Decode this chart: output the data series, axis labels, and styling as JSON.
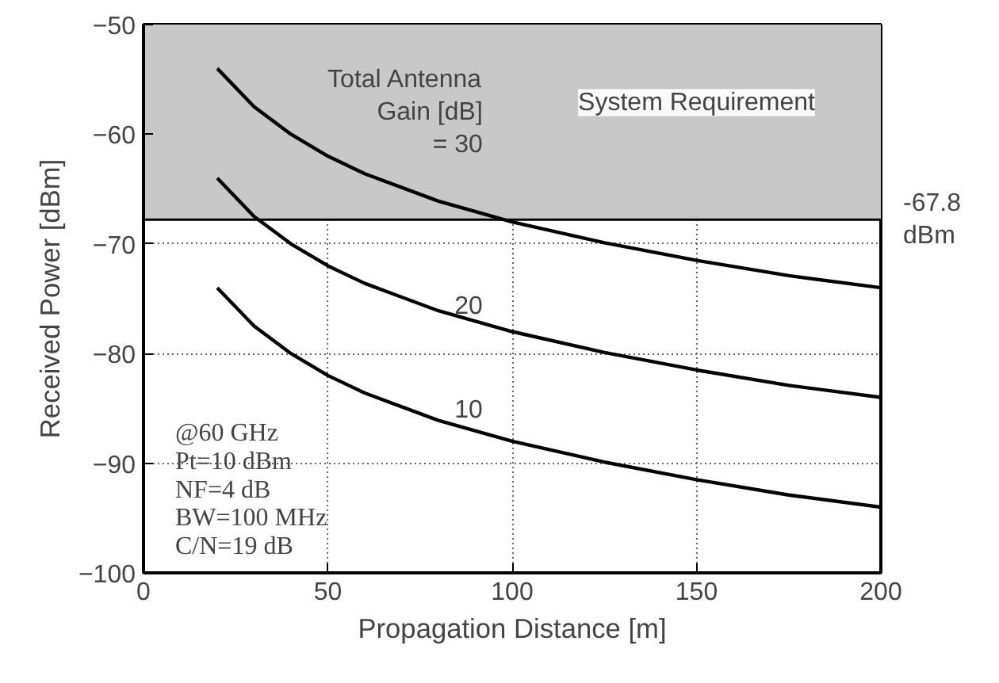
{
  "chart_data": {
    "type": "line",
    "xlabel": "Propagation Distance [m]",
    "ylabel": "Received Power [dBm]",
    "x": [
      20,
      30,
      40,
      50,
      60,
      80,
      100,
      125,
      150,
      175,
      200
    ],
    "series": [
      {
        "color": "#000000",
        "values": [
          -54.0,
          -57.5,
          -60.0,
          -62.0,
          -63.6,
          -66.1,
          -68.0,
          -69.9,
          -71.5,
          -72.9,
          -74.0
        ]
      },
      {
        "color": "#000000",
        "values": [
          -64.0,
          -67.5,
          -70.0,
          -72.0,
          -73.6,
          -76.1,
          -78.0,
          -79.9,
          -81.5,
          -82.9,
          -84.0
        ]
      },
      {
        "color": "#000000",
        "values": [
          -74.0,
          -77.5,
          -80.0,
          -82.0,
          -83.6,
          -86.1,
          -88.0,
          -89.9,
          -91.5,
          -92.9,
          -94.0
        ]
      }
    ],
    "xlim": [
      0,
      200
    ],
    "xticks": [
      0,
      50,
      100,
      150,
      200
    ],
    "ylim": [
      -100,
      -50
    ],
    "yticks": [
      -100,
      -90,
      -80,
      -70,
      -60,
      -50
    ],
    "grid": true,
    "marker": "none",
    "line_style": "solid",
    "bands": [
      {
        "axis": "y",
        "from": -67.8,
        "to": -50,
        "label": "System Requirement",
        "color": "#c8c8c8"
      }
    ],
    "ref_lines": [
      {
        "axis": "y",
        "value": -67.8,
        "label": "-67.8 dBm",
        "color": "#000000"
      }
    ],
    "annotations": [
      "Total Antenna\nGain [dB]\n= 30",
      "20",
      "10",
      "@60 GHz\nPt=10 dBm\nNF=4 dB\nBW=100 MHz\nC/N=19 dB"
    ]
  }
}
